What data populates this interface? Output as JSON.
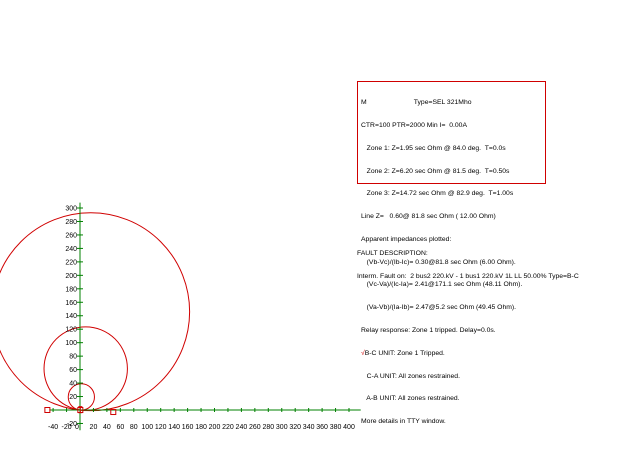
{
  "chart_data": {
    "type": "scatter",
    "title": "",
    "xlabel": "",
    "ylabel": "",
    "xlim": [
      -50,
      410
    ],
    "ylim": [
      -30,
      305
    ],
    "x_ticks": [
      -40,
      -20,
      20,
      40,
      60,
      80,
      100,
      120,
      140,
      160,
      180,
      200,
      220,
      240,
      260,
      280,
      300,
      320,
      340,
      360,
      380,
      400
    ],
    "y_ticks": [
      -20,
      20,
      40,
      60,
      80,
      100,
      120,
      140,
      160,
      180,
      200,
      220,
      240,
      260,
      280,
      300
    ],
    "origin_label": "0",
    "grid": false,
    "series": [
      {
        "kind": "mho-circle",
        "center": [
          16,
          146
        ],
        "radius": 147
      },
      {
        "kind": "mho-circle",
        "center": [
          8.5,
          61.5
        ],
        "radius": 62
      },
      {
        "kind": "mho-circle",
        "center": [
          2,
          19.4
        ],
        "radius": 19.5
      }
    ],
    "markers": [
      {
        "kind": "square",
        "x": 49.5,
        "y": -3
      },
      {
        "kind": "square",
        "x": -48.5,
        "y": 0
      },
      {
        "kind": "square",
        "x": 0.5,
        "y": 0
      },
      {
        "kind": "errorbar",
        "x": 0.5,
        "y0": -4,
        "y1": 5
      }
    ],
    "colors": {
      "axes": "#008000",
      "curves": "#d00000",
      "text": "#000000"
    }
  },
  "relay_info": {
    "lines": [
      "M                         Type=SEL 321Mho",
      "CTR=100 PTR=2000 Min I=  0.00A",
      "   Zone 1: Z=1.95 sec Ohm @ 84.0 deg.  T=0.0s",
      "   Zone 2: Z=6.20 sec Ohm @ 81.5 deg.  T=0.50s",
      "   Zone 3: Z=14.72 sec Ohm @ 82.9 deg.  T=1.00s",
      "Line Z=   0.60@ 81.8 sec Ohm ( 12.00 Ohm)",
      "Apparent impedances plotted:",
      "   (Vb-Vc)/(Ib-Ic)= 0.30@81.8 sec Ohm (6.00 Ohm).",
      "   (Vc-Va)/(Ic-Ia)= 2.41@171.1 sec Ohm (48.11 Ohm).",
      "   (Va-Vb)/(Ia-Ib)= 2.47@5.2 sec Ohm (49.45 Ohm).",
      "Relay response: Zone 1 tripped. Delay=0.0s."
    ],
    "check_mark": "√",
    "bc_unit": "B-C UNIT: Zone 1 Tripped.",
    "ca_unit": "   C-A UNIT: All zones restrained.",
    "ab_unit": "   A-B UNIT: All zones restrained.",
    "more": "More details in TTY window."
  },
  "fault": {
    "heading": "FAULT DESCRIPTION:",
    "text": "Interm. Fault on:  2 bus2 220.kV - 1 bus1 220.kV 1L LL 50.00% Type=B-C"
  }
}
